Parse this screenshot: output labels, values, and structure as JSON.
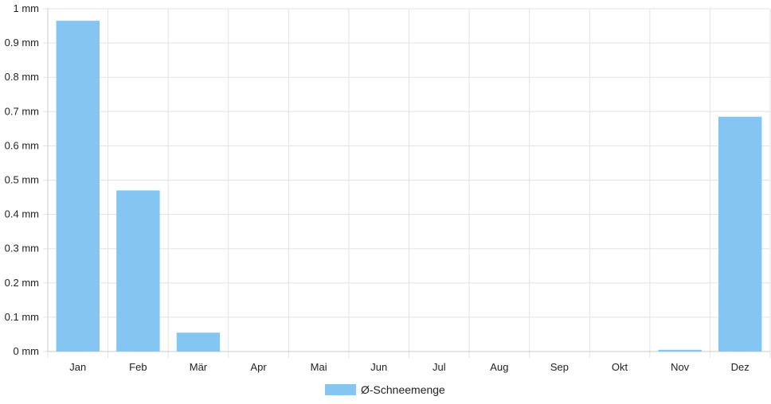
{
  "chart_data": {
    "type": "bar",
    "categories": [
      "Jan",
      "Feb",
      "Mär",
      "Apr",
      "Mai",
      "Jun",
      "Jul",
      "Aug",
      "Sep",
      "Okt",
      "Nov",
      "Dez"
    ],
    "series": [
      {
        "name": "Ø-Schneemenge",
        "values": [
          0.965,
          0.47,
          0.055,
          0,
          0,
          0,
          0,
          0,
          0,
          0,
          0.005,
          0.685
        ]
      }
    ],
    "y_ticks": [
      "0 mm",
      "0.1 mm",
      "0.2 mm",
      "0.3 mm",
      "0.4 mm",
      "0.5 mm",
      "0.6 mm",
      "0.7 mm",
      "0.8 mm",
      "0.9 mm",
      "1 mm"
    ],
    "ylim": [
      0,
      1
    ],
    "unit": "mm",
    "grid": true,
    "legend_position": "bottom",
    "colors": {
      "bar": "#85c5f2",
      "grid": "#e3e3e3",
      "axis": "#cccccc",
      "text": "#222222"
    }
  }
}
